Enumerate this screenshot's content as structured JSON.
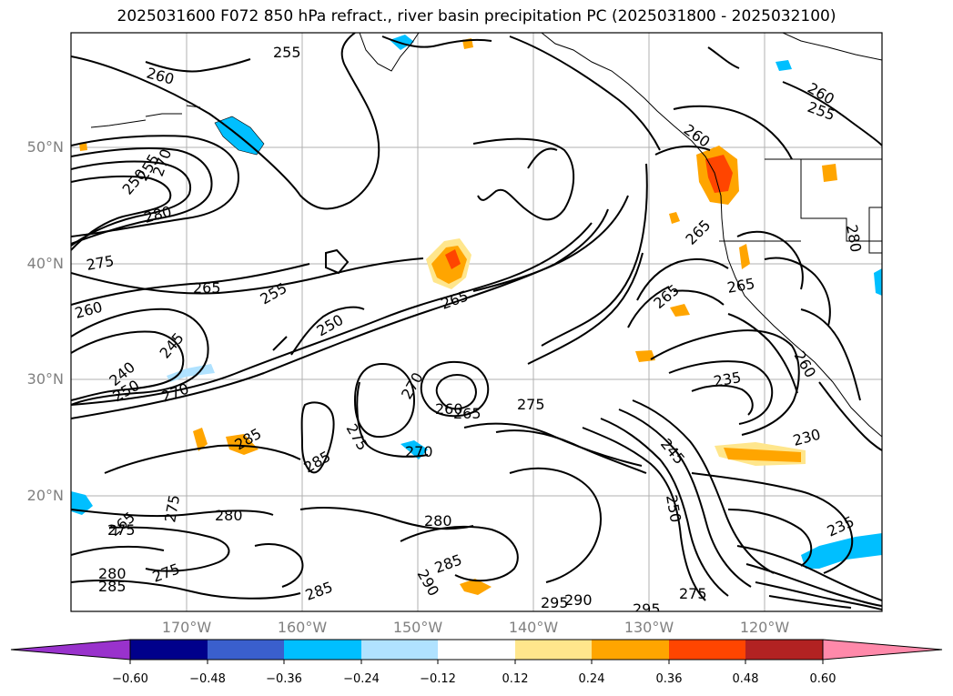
{
  "title": "2025031600 F072 850 hPa refract., river basin precipitation PC (2025031800 - 2025032100)",
  "lat_labels": [
    "50°N",
    "40°N",
    "30°N",
    "20°N"
  ],
  "lon_labels": [
    "170°W",
    "160°W",
    "150°W",
    "140°W",
    "130°W",
    "120°W"
  ],
  "contour_labels": [
    {
      "text": "255"
    },
    {
      "text": "260"
    },
    {
      "text": "260"
    },
    {
      "text": "255"
    },
    {
      "text": "260"
    },
    {
      "text": "250"
    },
    {
      "text": "255"
    },
    {
      "text": "270"
    },
    {
      "text": "280"
    },
    {
      "text": "275"
    },
    {
      "text": "265"
    },
    {
      "text": "255"
    },
    {
      "text": "260"
    },
    {
      "text": "250"
    },
    {
      "text": "265"
    },
    {
      "text": "245"
    },
    {
      "text": "240"
    },
    {
      "text": "250"
    },
    {
      "text": "270"
    },
    {
      "text": "270"
    },
    {
      "text": "260"
    },
    {
      "text": "265"
    },
    {
      "text": "275"
    },
    {
      "text": "275"
    },
    {
      "text": "285"
    },
    {
      "text": "285"
    },
    {
      "text": "270"
    },
    {
      "text": "280"
    },
    {
      "text": "265"
    },
    {
      "text": "275"
    },
    {
      "text": "275"
    },
    {
      "text": "280"
    },
    {
      "text": "285"
    },
    {
      "text": "275"
    },
    {
      "text": "280"
    },
    {
      "text": "285"
    },
    {
      "text": "290"
    },
    {
      "text": "285"
    },
    {
      "text": "295"
    },
    {
      "text": "290"
    },
    {
      "text": "295"
    },
    {
      "text": "275"
    },
    {
      "text": "265"
    },
    {
      "text": "265"
    },
    {
      "text": "235"
    },
    {
      "text": "245"
    },
    {
      "text": "250"
    },
    {
      "text": "230"
    },
    {
      "text": "235"
    },
    {
      "text": "280"
    },
    {
      "text": "265"
    },
    {
      "text": "260"
    }
  ],
  "colorbar": {
    "ticks": [
      "−0.60",
      "−0.48",
      "−0.36",
      "−0.24",
      "−0.12",
      "0.12",
      "0.24",
      "0.36",
      "0.48",
      "0.60"
    ],
    "colors": [
      "#9932cc",
      "#00008b",
      "#3a5fcd",
      "#00bfff",
      "#b0e2ff",
      "#ffffff",
      "#ffe68c",
      "#ffa500",
      "#ff4500",
      "#b22222",
      "#ff89aa"
    ]
  }
}
